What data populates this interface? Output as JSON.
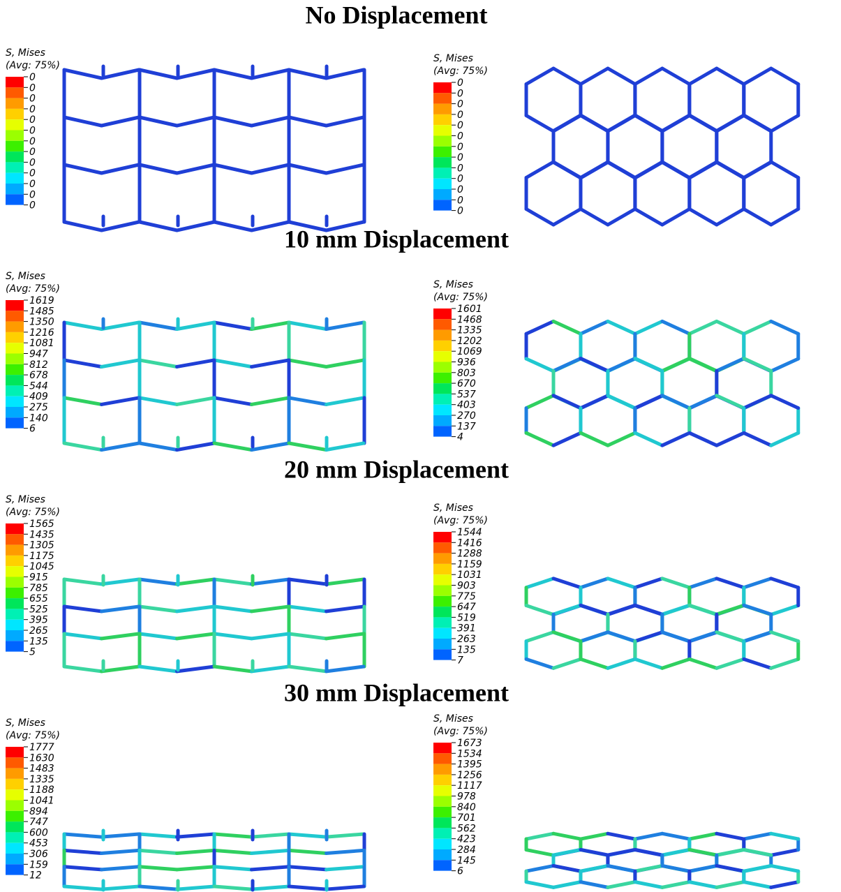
{
  "sections": [
    {
      "title": "No Displacement",
      "panels": [
        {
          "legend": {
            "title": "S, Mises",
            "subtitle": "(Avg: 75%)",
            "values": [
              0,
              0,
              0,
              0,
              0,
              0,
              0,
              0,
              0,
              0,
              0,
              0,
              0
            ]
          }
        },
        {
          "legend": {
            "title": "S, Mises",
            "subtitle": "(Avg: 75%)",
            "values": [
              0,
              0,
              0,
              0,
              0,
              0,
              0,
              0,
              0,
              0,
              0,
              0,
              0
            ]
          }
        }
      ]
    },
    {
      "title": "10 mm Displacement",
      "panels": [
        {
          "legend": {
            "title": "S, Mises",
            "subtitle": "(Avg: 75%)",
            "values": [
              1619,
              1485,
              1350,
              1216,
              1081,
              947,
              812,
              678,
              544,
              409,
              275,
              140,
              6
            ]
          }
        },
        {
          "legend": {
            "title": "S, Mises",
            "subtitle": "(Avg: 75%)",
            "values": [
              1601,
              1468,
              1335,
              1202,
              1069,
              936,
              803,
              670,
              537,
              403,
              270,
              137,
              4
            ]
          }
        }
      ]
    },
    {
      "title": "20 mm Displacement",
      "panels": [
        {
          "legend": {
            "title": "S, Mises",
            "subtitle": "(Avg: 75%)",
            "values": [
              1565,
              1435,
              1305,
              1175,
              1045,
              915,
              785,
              655,
              525,
              395,
              265,
              135,
              5
            ]
          }
        },
        {
          "legend": {
            "title": "S, Mises",
            "subtitle": "(Avg: 75%)",
            "values": [
              1544,
              1416,
              1288,
              1159,
              1031,
              903,
              775,
              647,
              519,
              391,
              263,
              135,
              7
            ]
          }
        }
      ]
    },
    {
      "title": "30 mm Displacement",
      "panels": [
        {
          "legend": {
            "title": "S, Mises",
            "subtitle": "(Avg: 75%)",
            "values": [
              1777,
              1630,
              1483,
              1335,
              1188,
              1041,
              894,
              747,
              600,
              453,
              306,
              159,
              12
            ]
          }
        },
        {
          "legend": {
            "title": "S, Mises",
            "subtitle": "(Avg: 75%)",
            "values": [
              1673,
              1534,
              1395,
              1256,
              1117,
              978,
              840,
              701,
              562,
              423,
              284,
              145,
              6
            ]
          }
        }
      ]
    }
  ]
}
